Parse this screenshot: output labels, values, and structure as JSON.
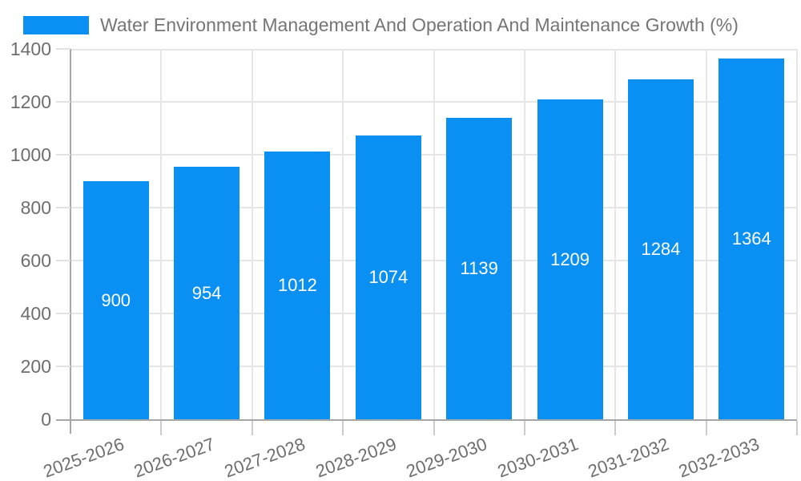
{
  "legend": {
    "label": "Water Environment Management And Operation And Maintenance Growth (%)"
  },
  "chart_data": {
    "type": "bar",
    "title": "Water Environment Management And Operation And Maintenance Growth (%)",
    "categories": [
      "2025-2026",
      "2026-2027",
      "2027-2028",
      "2028-2029",
      "2029-2030",
      "2030-2031",
      "2031-2032",
      "2032-2033"
    ],
    "values": [
      900,
      954,
      1012,
      1074,
      1139,
      1209,
      1284,
      1364
    ],
    "value_labels": [
      "900",
      "954",
      "1012",
      "1074",
      "1139",
      "1209",
      "1284",
      "1364"
    ],
    "xlabel": "",
    "ylabel": "",
    "ylim": [
      0,
      1400
    ],
    "yticks": [
      0,
      200,
      400,
      600,
      800,
      1000,
      1200,
      1400
    ],
    "grid": true,
    "legend_position": "top-left",
    "x_label_rotation_deg": -20
  },
  "colors": {
    "bar": "#0a90f2",
    "value_label": "#ffffff",
    "grid_line": "#e6e6e6",
    "axis_line": "#a6a6a6",
    "text": "#6e6e6e",
    "title_text": "#757575",
    "background": "#ffffff"
  }
}
